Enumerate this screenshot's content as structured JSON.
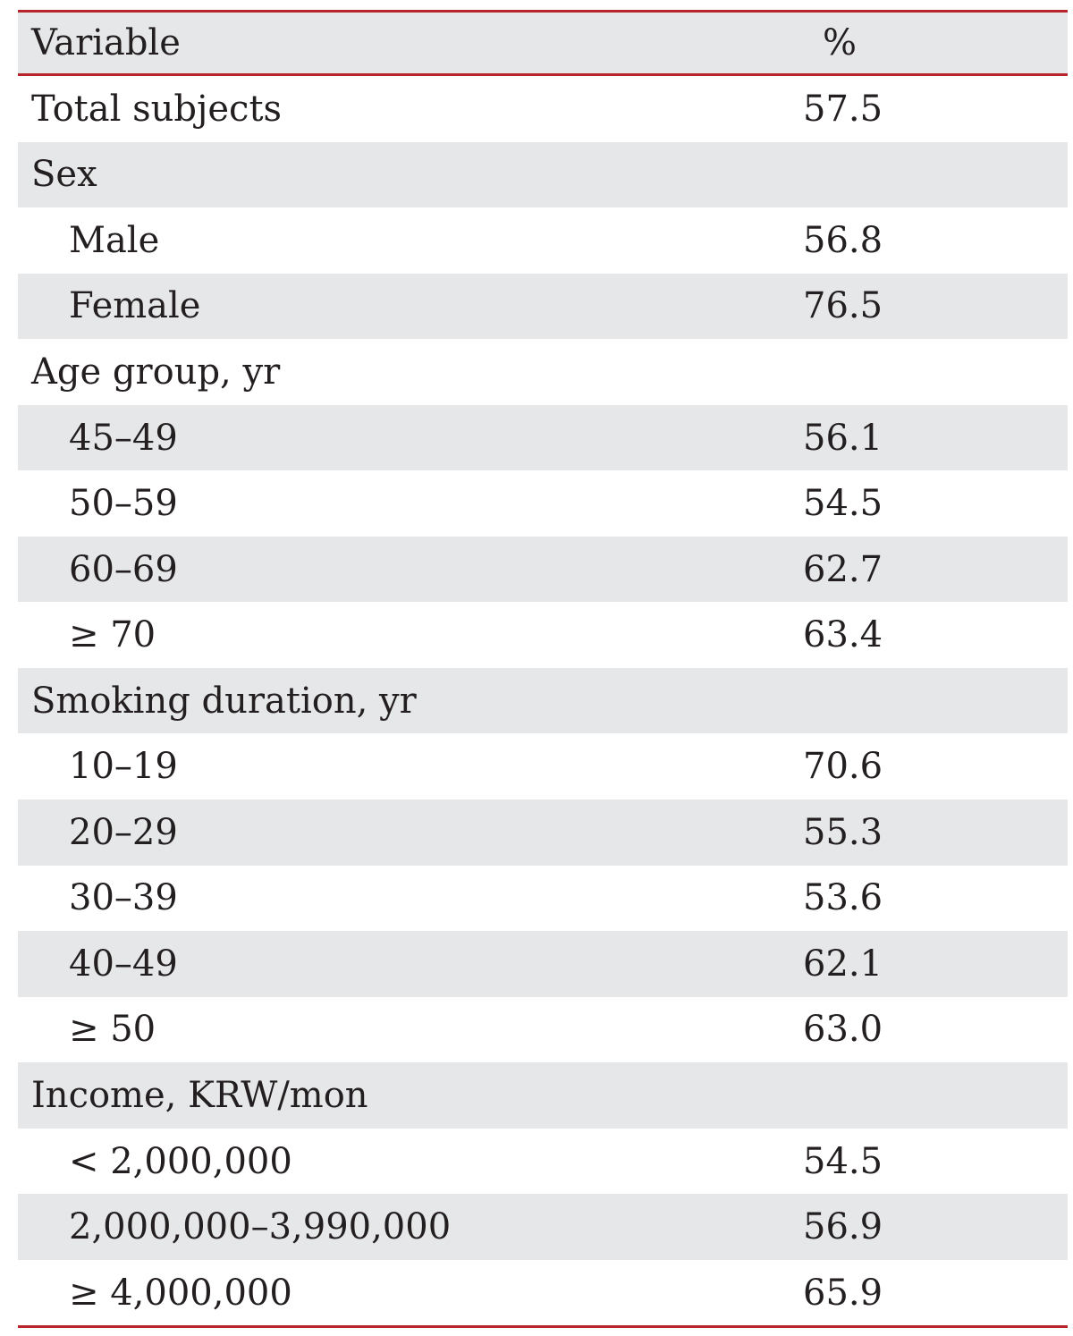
{
  "table": {
    "headers": {
      "variable": "Variable",
      "percent": "%"
    },
    "rows": [
      {
        "label": "Total subjects",
        "value": "57.5",
        "indent": false,
        "shaded": false
      },
      {
        "label": "Sex",
        "value": "",
        "indent": false,
        "shaded": true
      },
      {
        "label": "Male",
        "value": "56.8",
        "indent": true,
        "shaded": false
      },
      {
        "label": "Female",
        "value": "76.5",
        "indent": true,
        "shaded": true
      },
      {
        "label": "Age group, yr",
        "value": "",
        "indent": false,
        "shaded": false
      },
      {
        "label": "45–49",
        "value": "56.1",
        "indent": true,
        "shaded": true
      },
      {
        "label": "50–59",
        "value": "54.5",
        "indent": true,
        "shaded": false
      },
      {
        "label": "60–69",
        "value": "62.7",
        "indent": true,
        "shaded": true
      },
      {
        "label": "≥ 70",
        "value": "63.4",
        "indent": true,
        "shaded": false
      },
      {
        "label": "Smoking duration, yr",
        "value": "",
        "indent": false,
        "shaded": true
      },
      {
        "label": "10–19",
        "value": "70.6",
        "indent": true,
        "shaded": false
      },
      {
        "label": "20–29",
        "value": "55.3",
        "indent": true,
        "shaded": true
      },
      {
        "label": "30–39",
        "value": "53.6",
        "indent": true,
        "shaded": false
      },
      {
        "label": "40–49",
        "value": "62.1",
        "indent": true,
        "shaded": true
      },
      {
        "label": "≥ 50",
        "value": "63.0",
        "indent": true,
        "shaded": false
      },
      {
        "label": "Income, KRW/mon",
        "value": "",
        "indent": false,
        "shaded": true
      },
      {
        "label": "< 2,000,000",
        "value": "54.5",
        "indent": true,
        "shaded": false
      },
      {
        "label": "2,000,000–3,990,000",
        "value": "56.9",
        "indent": true,
        "shaded": true
      },
      {
        "label": "≥ 4,000,000",
        "value": "65.9",
        "indent": true,
        "shaded": false
      }
    ]
  }
}
